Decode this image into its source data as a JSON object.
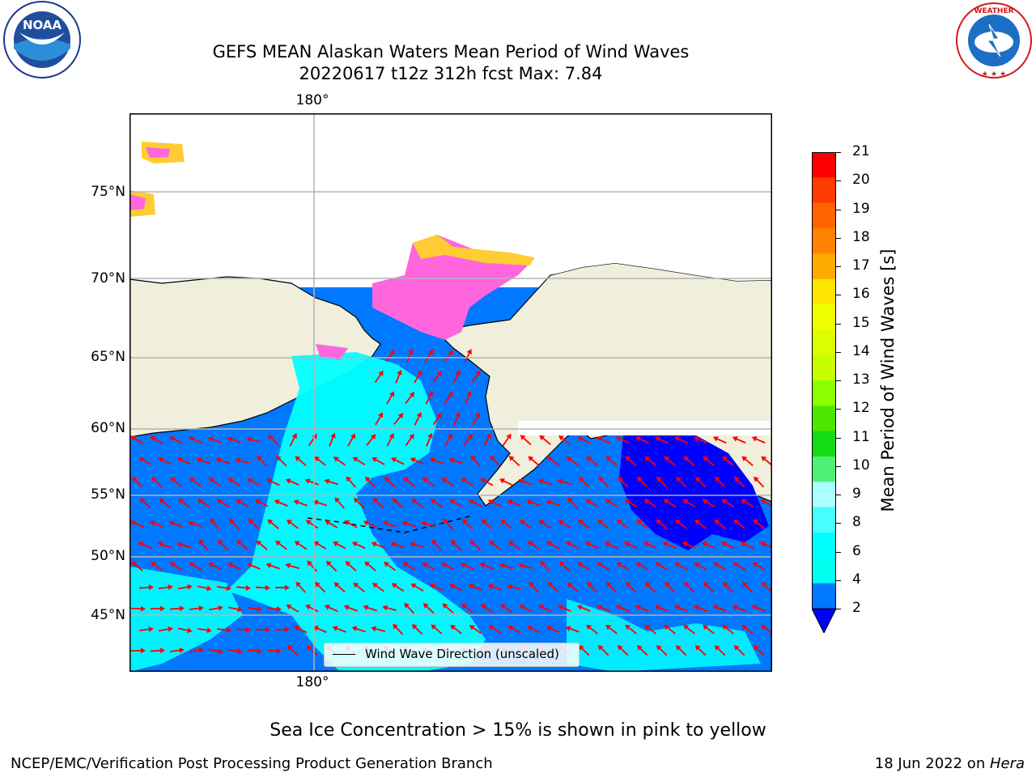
{
  "title": {
    "line1": "GEFS MEAN Alaskan Waters Mean Period of Wind Waves",
    "line2": "20220617 t12z 312h fcst   Max: 7.84"
  },
  "axes": {
    "lat_labels": [
      "75°N",
      "70°N",
      "65°N",
      "60°N",
      "55°N",
      "50°N",
      "45°N"
    ],
    "lon_top": "180°",
    "lon_bottom": "180°"
  },
  "colorbar": {
    "label": "Mean Period of Wind Waves [s]",
    "ticks": [
      "21",
      "20",
      "19",
      "18",
      "17",
      "16",
      "15",
      "14",
      "13",
      "12",
      "11",
      "10",
      "9",
      "8",
      "6",
      "4",
      "2"
    ],
    "colors": [
      "#ff0000",
      "#ff3c00",
      "#ff6400",
      "#ff8200",
      "#ffaa00",
      "#ffe600",
      "#f0ff00",
      "#dcff00",
      "#c8ff00",
      "#8cff00",
      "#4ee600",
      "#14dc14",
      "#50f078",
      "#aaffff",
      "#46ffff",
      "#00ffff",
      "#00ffee",
      "#0078ff",
      "#0000ff"
    ]
  },
  "legend": {
    "label": "Wind Wave Direction (unscaled)"
  },
  "map": {
    "colors": {
      "land": "#efefdc",
      "water_deep": "#0078ff",
      "water_cyan": "#00ffff",
      "water_min": "#0000ff",
      "ice_pink": "#ff66dd",
      "ice_yellow": "#ffcc33",
      "arrow": "#ff0000",
      "grid": "#b4b4b4"
    }
  },
  "note": "Sea Ice Concentration > 15% is shown in pink to yellow",
  "footer": {
    "left": "NCEP/EMC/Verification Post Processing Product Generation Branch",
    "right_date": "18 Jun 2022 on ",
    "right_host": "Hera"
  },
  "logos": {
    "noaa": {
      "text": "NOAA",
      "ring": "NATIONAL OCEANIC AND ATMOSPHERIC ADMINISTRATION"
    },
    "nws": {
      "ring": "NATIONAL WEATHER SERVICE"
    }
  }
}
